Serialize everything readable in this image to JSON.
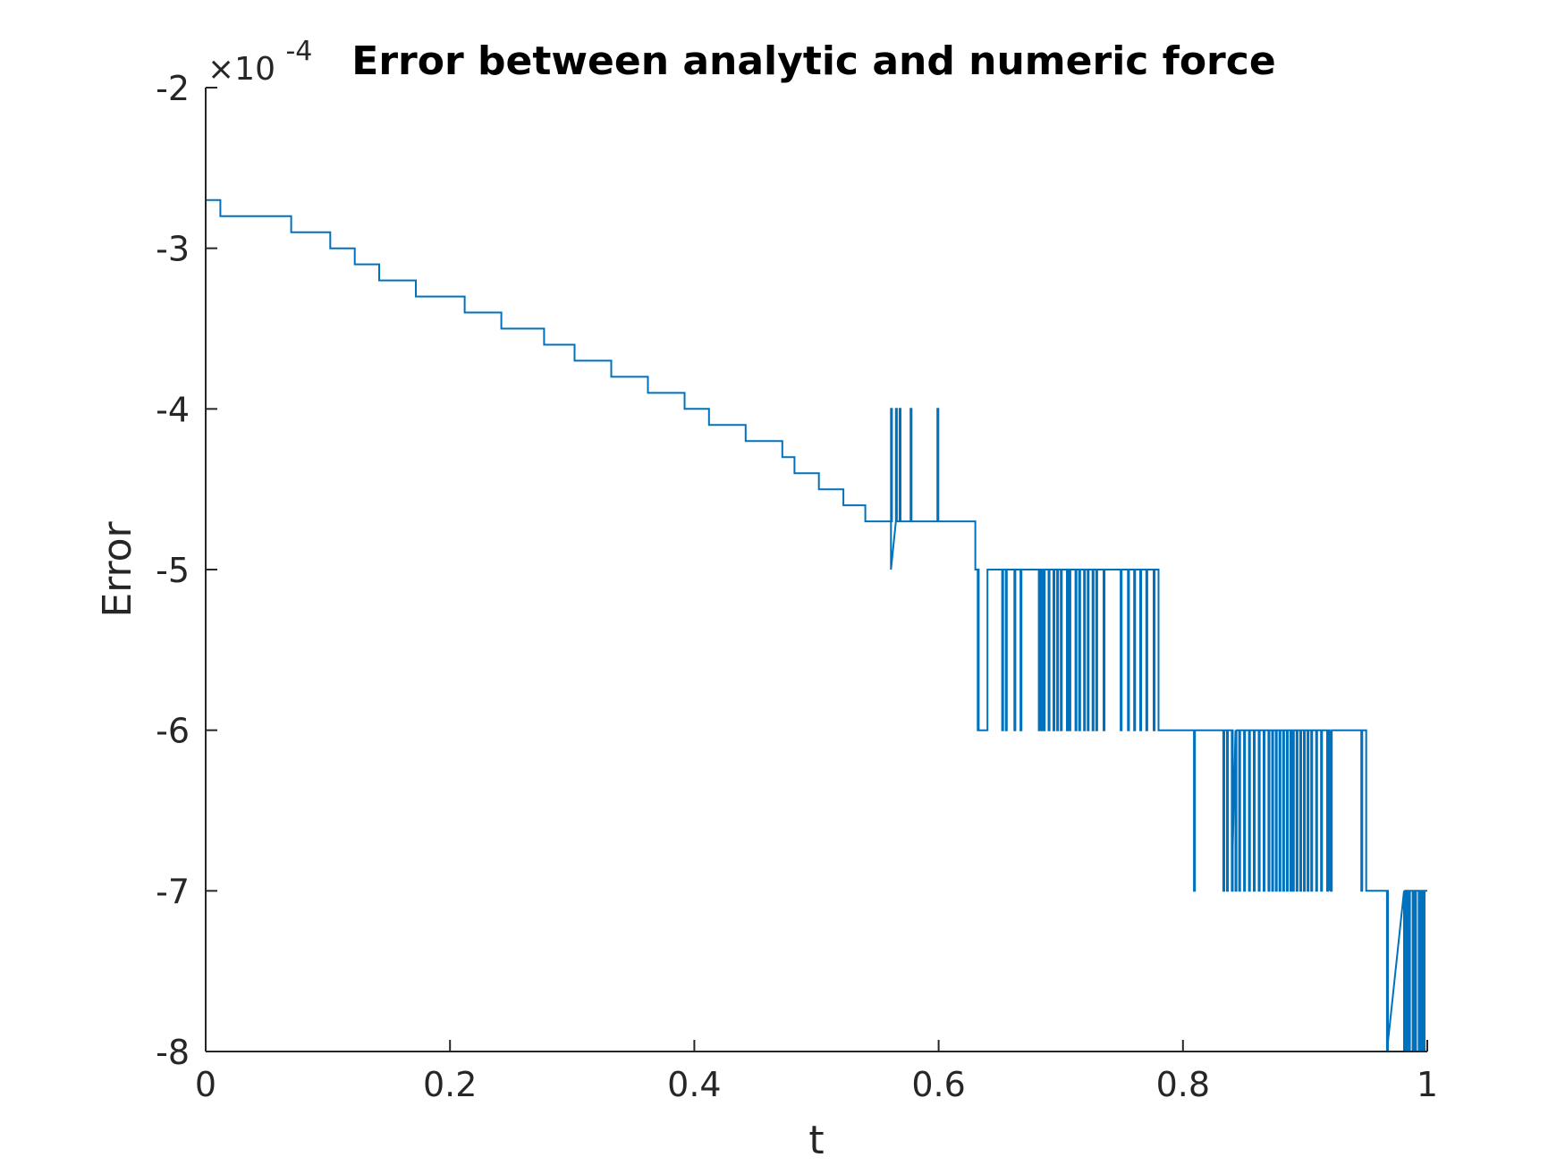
{
  "chart_data": {
    "type": "line",
    "title": "Error between analytic and numeric force",
    "xlabel": "t",
    "ylabel": "Error",
    "exponent_label": {
      "base": "×10",
      "power": "-4"
    },
    "xlim": [
      0,
      1
    ],
    "ylim": [
      -8,
      -2
    ],
    "xticks": [
      0,
      0.2,
      0.4,
      0.6,
      0.8,
      1
    ],
    "xtick_labels": [
      "0",
      "0.2",
      "0.4",
      "0.6",
      "0.8",
      "1"
    ],
    "yticks": [
      -8,
      -7,
      -6,
      -5,
      -4,
      -3,
      -2
    ],
    "ytick_labels": [
      "-8",
      "-7",
      "-6",
      "-5",
      "-4",
      "-3",
      "-2"
    ],
    "grid": false,
    "series": [
      {
        "color": "#0072BD",
        "trend": [
          [
            0.0,
            -2.7
          ],
          [
            0.01,
            -2.7
          ],
          [
            0.012,
            -2.8
          ],
          [
            0.06,
            -2.8
          ],
          [
            0.07,
            -2.9
          ],
          [
            0.1,
            -2.9
          ],
          [
            0.102,
            -3.0
          ],
          [
            0.12,
            -3.0
          ],
          [
            0.122,
            -3.1
          ],
          [
            0.14,
            -3.1
          ],
          [
            0.142,
            -3.2
          ],
          [
            0.17,
            -3.2
          ],
          [
            0.172,
            -3.3
          ],
          [
            0.21,
            -3.3
          ],
          [
            0.212,
            -3.4
          ],
          [
            0.24,
            -3.4
          ],
          [
            0.242,
            -3.5
          ],
          [
            0.275,
            -3.5
          ],
          [
            0.277,
            -3.6
          ],
          [
            0.3,
            -3.6
          ],
          [
            0.302,
            -3.7
          ],
          [
            0.33,
            -3.7
          ],
          [
            0.332,
            -3.8
          ],
          [
            0.36,
            -3.8
          ],
          [
            0.362,
            -3.9
          ],
          [
            0.39,
            -3.9
          ],
          [
            0.392,
            -4.0
          ],
          [
            0.41,
            -4.0
          ],
          [
            0.412,
            -4.1
          ],
          [
            0.44,
            -4.1
          ],
          [
            0.442,
            -4.2
          ],
          [
            0.47,
            -4.2
          ],
          [
            0.472,
            -4.3
          ],
          [
            0.48,
            -4.3
          ],
          [
            0.482,
            -4.4
          ],
          [
            0.5,
            -4.4
          ],
          [
            0.502,
            -4.5
          ],
          [
            0.52,
            -4.5
          ],
          [
            0.522,
            -4.6
          ],
          [
            0.538,
            -4.6
          ],
          [
            0.54,
            -4.7
          ],
          [
            0.56,
            -4.7
          ],
          [
            0.561,
            -5.0
          ],
          [
            0.63,
            -5.0
          ],
          [
            0.632,
            -6.0
          ],
          [
            0.64,
            -5.0
          ],
          [
            0.71,
            -5.0
          ],
          [
            0.78,
            -6.0
          ],
          [
            0.83,
            -6.0
          ],
          [
            0.84,
            -7.0
          ],
          [
            0.87,
            -6.0
          ],
          [
            0.92,
            -7.0
          ],
          [
            0.95,
            -7.0
          ],
          [
            0.965,
            -7.0
          ],
          [
            0.967,
            -8.0
          ],
          [
            0.985,
            -7.0
          ],
          [
            1.0,
            -7.0
          ]
        ],
        "spikes": [
          {
            "from": -4.7,
            "to": -4.0,
            "t": [
              0.561,
              0.565,
              0.568,
              0.577,
              0.599
            ]
          },
          {
            "from": -5.0,
            "to": -6.0,
            "t": [
              0.632,
              0.652,
              0.655,
              0.662,
              0.667,
              0.682,
              0.684,
              0.686,
              0.69,
              0.694,
              0.697,
              0.7,
              0.705,
              0.707,
              0.712,
              0.715,
              0.719,
              0.722,
              0.726,
              0.729,
              0.735,
              0.749,
              0.755,
              0.76,
              0.765,
              0.77,
              0.776
            ]
          },
          {
            "from": -6.0,
            "to": -7.0,
            "t": [
              0.809,
              0.833,
              0.836,
              0.84,
              0.843,
              0.846,
              0.85,
              0.854,
              0.858,
              0.862,
              0.866,
              0.87,
              0.873,
              0.876,
              0.879,
              0.882,
              0.885,
              0.888,
              0.89,
              0.893,
              0.896,
              0.899,
              0.902,
              0.905,
              0.909,
              0.913,
              0.918,
              0.921,
              0.946
            ]
          },
          {
            "from": -7.0,
            "to": -8.0,
            "t": [
              0.967,
              0.981,
              0.983,
              0.985,
              0.988,
              0.99,
              0.993,
              0.995,
              0.997
            ]
          }
        ]
      }
    ]
  }
}
